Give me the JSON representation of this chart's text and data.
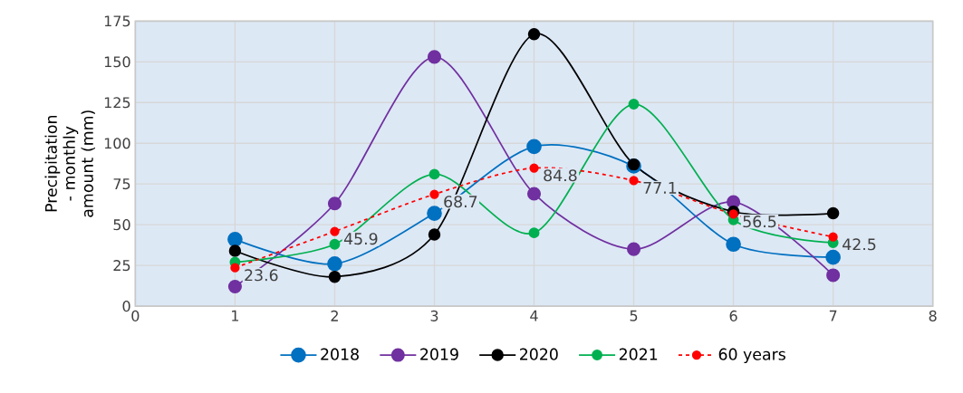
{
  "chart_data": {
    "type": "line",
    "ylabel": "Precipitation - monthly amount (mm)",
    "x": [
      1,
      2,
      3,
      4,
      5,
      6,
      7
    ],
    "series": [
      {
        "name": "2018",
        "color": "#0070c0",
        "values": [
          41,
          26,
          57,
          98,
          86,
          38,
          30
        ]
      },
      {
        "name": "2019",
        "color": "#7030a0",
        "values": [
          12,
          63,
          153,
          69,
          35,
          64,
          19
        ]
      },
      {
        "name": "2020",
        "color": "#000000",
        "values": [
          34,
          18,
          44,
          167,
          87,
          58,
          57
        ]
      },
      {
        "name": "2021",
        "color": "#00b050",
        "values": [
          27,
          38,
          81,
          45,
          124,
          53,
          39
        ]
      },
      {
        "name": "60 years",
        "color": "#ff0000",
        "line_style": "dashed",
        "values": [
          23.6,
          45.9,
          68.7,
          84.8,
          77.1,
          56.5,
          42.5
        ],
        "value_labels": [
          "23.6",
          "45.9",
          "68.7",
          "84.8",
          "77.1",
          "56.5",
          "42.5"
        ]
      }
    ],
    "xlim": [
      0,
      8
    ],
    "xticks": [
      0,
      1,
      2,
      3,
      4,
      5,
      6,
      7,
      8
    ],
    "ylim": [
      0,
      175
    ],
    "yticks": [
      0,
      25,
      50,
      75,
      100,
      125,
      150,
      175
    ],
    "grid": true,
    "legend": "bottom",
    "marker": "circle",
    "line_style": "solid"
  }
}
